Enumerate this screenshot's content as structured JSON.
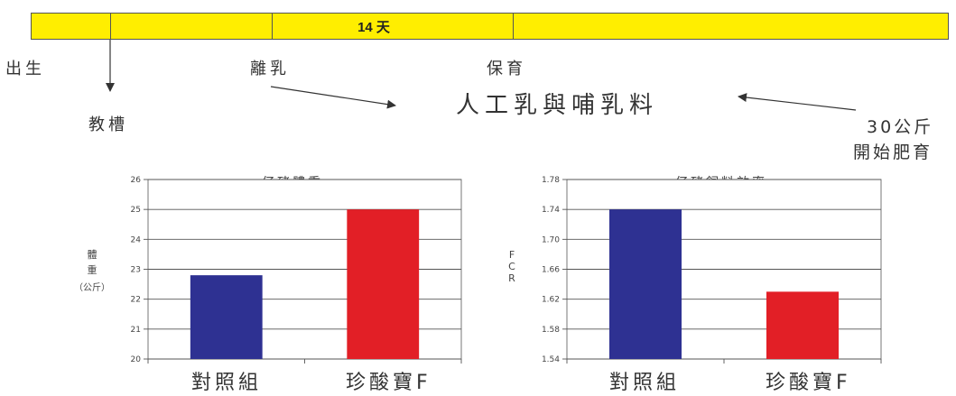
{
  "timeline": {
    "days_label": "14 天",
    "stages": {
      "birth": "出生",
      "weaning": "離乳",
      "nursery": "保育",
      "teaching_trough": "教槽"
    },
    "feed_label": "人工乳與哺乳料",
    "fattening": {
      "line1": "30公斤",
      "line2": "開始肥育"
    },
    "bar_color": "#ffee00"
  },
  "chart_data": [
    {
      "type": "bar",
      "title": "仔豬體重",
      "ylabel": "體重（公斤）",
      "categories": [
        "對照組",
        "珍酸寶F"
      ],
      "values": [
        22.8,
        25.0
      ],
      "colors": [
        "#2e3192",
        "#e21f26"
      ],
      "ylim": [
        20,
        26
      ],
      "yticks": [
        "20",
        "21",
        "22",
        "23",
        "24",
        "25",
        "26"
      ],
      "grid": true
    },
    {
      "type": "bar",
      "title": "仔豬飼料效率",
      "ylabel": "FCR",
      "categories": [
        "對照組",
        "珍酸寶F"
      ],
      "values": [
        1.74,
        1.63
      ],
      "colors": [
        "#2e3192",
        "#e21f26"
      ],
      "ylim": [
        1.54,
        1.78
      ],
      "yticks": [
        "1.54",
        "1.58",
        "1.62",
        "1.66",
        "1.70",
        "1.74",
        "1.78"
      ],
      "grid": true
    }
  ]
}
